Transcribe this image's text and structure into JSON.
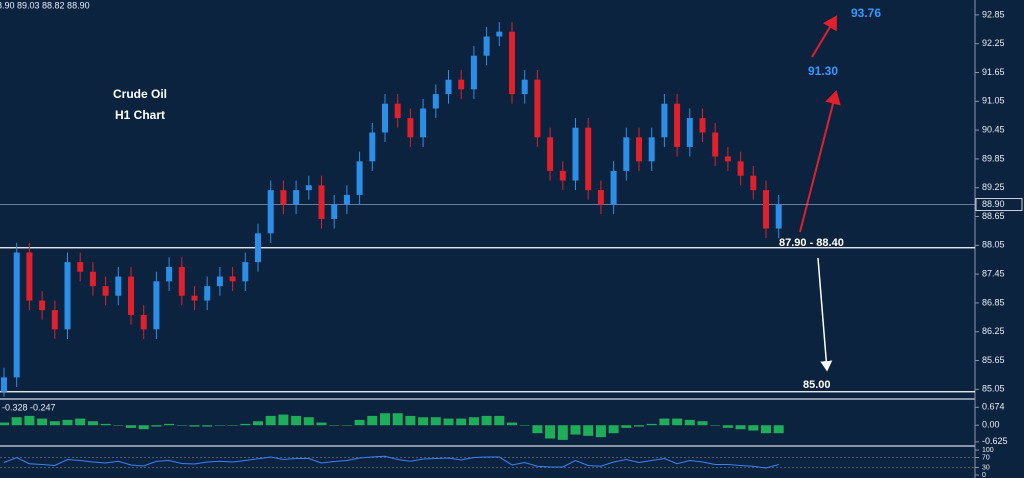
{
  "chart_data": {
    "type": "candlestick",
    "ohlc_label": "8.90 89.03 88.82 88.90",
    "annotations": [
      "Crude Oil",
      "H1 Chart",
      "93.76",
      "91.30",
      "87.90 - 88.40",
      "85.00"
    ],
    "up_color": "#2b8fe8",
    "down_color": "#e0202a",
    "open": [
      85.0,
      85.3,
      87.9,
      86.9,
      86.7,
      86.3,
      87.7,
      87.5,
      87.2,
      87.0,
      87.4,
      86.6,
      86.3,
      87.3,
      87.6,
      87.0,
      86.9,
      87.2,
      87.4,
      87.3,
      87.7,
      88.3,
      89.2,
      88.9,
      89.2,
      89.3,
      88.6,
      88.9,
      89.1,
      89.8,
      90.4,
      91.0,
      90.7,
      90.3,
      90.9,
      91.2,
      91.5,
      91.3,
      92.0,
      92.4,
      92.5,
      91.2,
      91.5,
      90.3,
      89.6,
      89.4,
      90.5,
      89.2,
      88.9,
      89.6,
      90.3,
      89.8,
      90.3,
      91.0,
      90.1,
      90.7,
      90.4,
      89.9,
      89.8,
      89.5,
      89.2,
      88.4
    ],
    "high": [
      85.5,
      88.1,
      88.1,
      87.1,
      86.9,
      87.9,
      87.9,
      87.7,
      87.4,
      87.6,
      87.6,
      86.8,
      87.5,
      87.8,
      87.8,
      87.2,
      87.4,
      87.6,
      87.6,
      87.9,
      88.5,
      89.4,
      89.4,
      89.4,
      89.5,
      89.5,
      89.1,
      89.3,
      90.0,
      90.6,
      91.2,
      91.2,
      90.9,
      91.1,
      91.4,
      91.7,
      91.7,
      92.2,
      92.6,
      92.7,
      92.7,
      91.7,
      91.7,
      90.5,
      89.8,
      90.7,
      90.7,
      89.4,
      89.8,
      90.5,
      90.5,
      90.5,
      91.2,
      91.2,
      90.9,
      90.9,
      90.6,
      90.1,
      90.0,
      89.7,
      89.4,
      89.1
    ],
    "low": [
      84.9,
      85.1,
      86.7,
      86.5,
      86.1,
      86.1,
      87.3,
      87.0,
      86.8,
      86.8,
      86.4,
      86.1,
      86.1,
      87.1,
      86.8,
      86.7,
      86.7,
      87.0,
      87.1,
      87.1,
      87.5,
      88.1,
      88.7,
      88.7,
      89.0,
      88.4,
      88.4,
      88.7,
      88.9,
      89.6,
      90.2,
      90.5,
      90.1,
      90.1,
      90.7,
      91.0,
      91.1,
      91.1,
      91.8,
      92.2,
      91.0,
      91.0,
      90.1,
      89.4,
      89.2,
      89.2,
      89.0,
      88.7,
      88.7,
      89.4,
      89.6,
      89.6,
      90.1,
      89.9,
      89.9,
      90.2,
      89.7,
      89.6,
      89.3,
      89.0,
      88.2,
      88.2
    ],
    "close": [
      85.3,
      87.9,
      86.9,
      86.7,
      86.3,
      87.7,
      87.5,
      87.2,
      87.0,
      87.4,
      86.6,
      86.3,
      87.3,
      87.6,
      87.0,
      86.9,
      87.2,
      87.4,
      87.3,
      87.7,
      88.3,
      89.2,
      88.9,
      89.2,
      89.3,
      88.6,
      88.9,
      89.1,
      89.8,
      90.4,
      91.0,
      90.7,
      90.3,
      90.9,
      91.2,
      91.5,
      91.3,
      92.0,
      92.4,
      92.5,
      91.2,
      91.5,
      90.3,
      89.6,
      89.4,
      90.5,
      89.2,
      88.9,
      89.6,
      90.3,
      89.8,
      90.3,
      91.0,
      90.1,
      90.7,
      90.4,
      89.9,
      89.8,
      89.5,
      89.2,
      88.4,
      88.9
    ],
    "ylim": [
      84.87,
      93.16
    ],
    "yticks": [
      92.85,
      92.25,
      91.65,
      91.05,
      90.45,
      89.85,
      89.25,
      88.65,
      88.05,
      87.45,
      86.85,
      86.25,
      85.65,
      85.05
    ],
    "last_price": {
      "value": 88.9,
      "label": "88.90"
    },
    "levels": [
      88.0,
      85.0
    ],
    "macd": {
      "label": "-0.328 -0.247",
      "color": "#22c55e",
      "values": [
        0.1,
        0.3,
        0.35,
        0.25,
        0.15,
        0.2,
        0.25,
        0.15,
        0.05,
        0.0,
        -0.1,
        -0.15,
        -0.05,
        0.05,
        0.0,
        -0.05,
        -0.05,
        0.0,
        0.0,
        0.05,
        0.15,
        0.35,
        0.4,
        0.35,
        0.3,
        0.1,
        0.0,
        0.0,
        0.2,
        0.35,
        0.45,
        0.45,
        0.35,
        0.3,
        0.3,
        0.25,
        0.25,
        0.3,
        0.35,
        0.35,
        0.1,
        0.0,
        -0.3,
        -0.5,
        -0.55,
        -0.35,
        -0.4,
        -0.45,
        -0.3,
        -0.1,
        -0.05,
        0.05,
        0.25,
        0.25,
        0.2,
        0.15,
        0.0,
        -0.1,
        -0.15,
        -0.2,
        -0.3,
        -0.3
      ],
      "ylim": [
        -0.743,
        0.91
      ],
      "yticks": [
        0.674,
        {
          "value": 0,
          "label": "0.00"
        },
        -0.625
      ]
    },
    "rsi": {
      "color": "#3b82f6",
      "values": [
        50,
        70,
        45,
        42,
        38,
        62,
        58,
        52,
        48,
        55,
        40,
        36,
        55,
        58,
        46,
        44,
        52,
        55,
        52,
        58,
        65,
        72,
        62,
        66,
        66,
        48,
        54,
        58,
        68,
        72,
        75,
        62,
        55,
        64,
        66,
        68,
        60,
        70,
        72,
        72,
        40,
        50,
        35,
        32,
        32,
        58,
        38,
        35,
        52,
        62,
        50,
        58,
        66,
        45,
        58,
        52,
        42,
        42,
        38,
        35,
        28,
        42
      ],
      "ylim": [
        0,
        100
      ],
      "yticks": [
        100,
        70,
        30,
        0
      ]
    }
  }
}
